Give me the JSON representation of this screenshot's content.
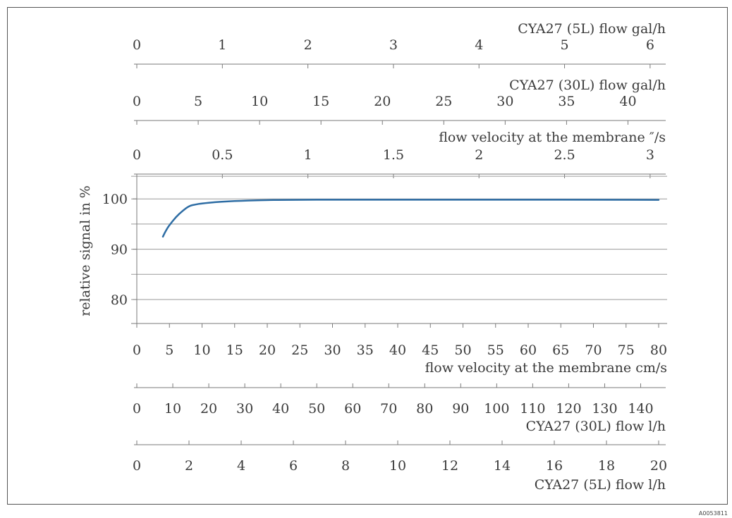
{
  "chart_data": {
    "type": "line",
    "title": "",
    "ylabel": "relative signal in %",
    "ylim": [
      75,
      105
    ],
    "yticks": [
      80,
      90,
      100
    ],
    "grid": true,
    "primary_x": {
      "label": "flow velocity at the membrane cm/s",
      "lim": [
        0,
        80
      ],
      "ticks": [
        0,
        5,
        10,
        15,
        20,
        25,
        30,
        35,
        40,
        45,
        50,
        55,
        60,
        65,
        70,
        75,
        80
      ]
    },
    "top_axes": [
      {
        "label": "CYA27 (5L) flow gal/h",
        "lim": [
          0,
          6.1
        ],
        "ticks": [
          0,
          1,
          2,
          3,
          4,
          5,
          6
        ]
      },
      {
        "label": "CYA27 (30L) flow gal/h",
        "lim": [
          0,
          42.5
        ],
        "ticks": [
          0,
          5,
          10,
          15,
          20,
          25,
          30,
          35,
          40
        ]
      },
      {
        "label": "flow velocity at the membrane ″/s",
        "lim": [
          0,
          3.05
        ],
        "ticks": [
          "0",
          "0.5",
          "1",
          "1.5",
          "2",
          "2.5",
          "3"
        ]
      }
    ],
    "bottom_axes": [
      {
        "label": "CYA27 (30L) flow l/h",
        "lim": [
          0,
          145
        ],
        "ticks": [
          0,
          10,
          20,
          30,
          40,
          50,
          60,
          70,
          80,
          90,
          100,
          110,
          120,
          130,
          140
        ]
      },
      {
        "label": "CYA27 (5L) flow l/h",
        "lim": [
          0,
          20
        ],
        "ticks": [
          0,
          2,
          4,
          6,
          8,
          10,
          12,
          14,
          16,
          18,
          20
        ]
      }
    ],
    "series": [
      {
        "x": [
          4,
          4.5,
          5,
          6,
          7,
          8,
          9,
          10,
          12,
          14,
          16,
          18,
          20,
          22,
          25,
          30,
          40,
          50,
          60,
          70,
          80
        ],
        "y": [
          92.5,
          93.8,
          94.8,
          96.4,
          97.6,
          98.6,
          98.9,
          99.1,
          99.35,
          99.5,
          99.62,
          99.7,
          99.76,
          99.8,
          99.82,
          99.83,
          99.83,
          99.83,
          99.83,
          99.83,
          99.8
        ]
      }
    ]
  },
  "doc_id": "A0053811"
}
